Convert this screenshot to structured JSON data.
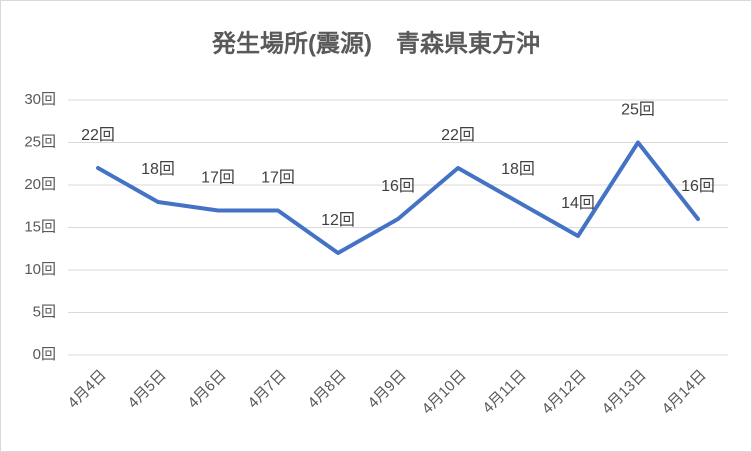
{
  "chart_data": {
    "type": "line",
    "title": "発生場所(震源)　青森県東方沖",
    "categories": [
      "4月4日",
      "4月5日",
      "4月6日",
      "4月7日",
      "4月8日",
      "4月9日",
      "4月10日",
      "4月11日",
      "4月12日",
      "4月13日",
      "4月14日"
    ],
    "values": [
      22,
      18,
      17,
      17,
      12,
      16,
      22,
      18,
      14,
      25,
      16
    ],
    "value_labels": [
      "22回",
      "18回",
      "17回",
      "17回",
      "12回",
      "16回",
      "22回",
      "18回",
      "14回",
      "25回",
      "16回"
    ],
    "color": "#4472c4",
    "ylim": [
      0,
      30
    ],
    "yticks": [
      {
        "value": 0,
        "label": "0回"
      },
      {
        "value": 5,
        "label": "5回"
      },
      {
        "value": 10,
        "label": "10回"
      },
      {
        "value": 15,
        "label": "15回"
      },
      {
        "value": 20,
        "label": "20回"
      },
      {
        "value": 25,
        "label": "25回"
      },
      {
        "value": 30,
        "label": "30回"
      }
    ],
    "grid": true
  }
}
